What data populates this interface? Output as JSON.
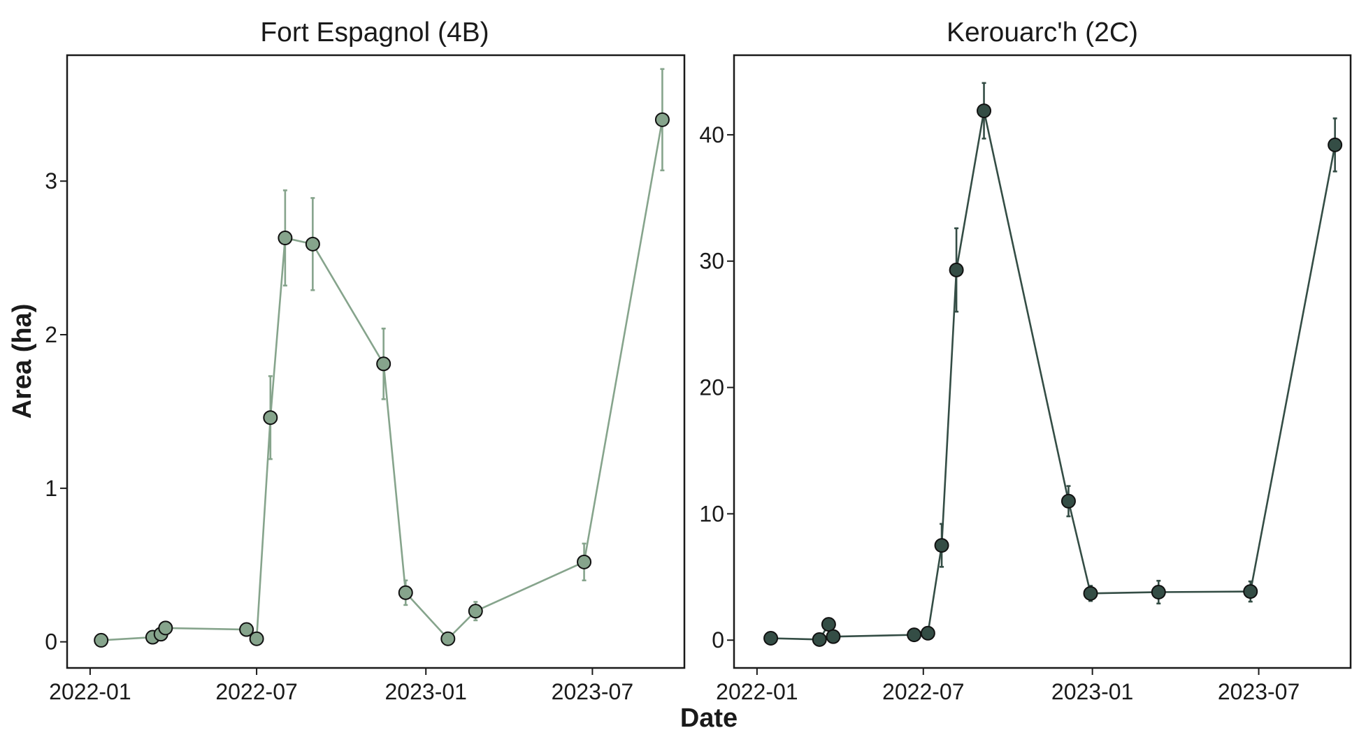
{
  "figure": {
    "ylabel": "Area (ha)",
    "xlabel": "Date"
  },
  "chart_data": [
    {
      "type": "line",
      "title": "Fort Espagnol (4B)",
      "xlabel": "Date",
      "ylabel": "Area (ha)",
      "x_ticks": [
        "2022-01",
        "2022-07",
        "2023-01",
        "2023-07"
      ],
      "y_ticks": [
        "0",
        "1",
        "2",
        "3"
      ],
      "xlim": [
        "2021-12-07",
        "2023-10-09"
      ],
      "ylim": [
        -0.17,
        3.82
      ],
      "grid": false,
      "color": "#86a48c",
      "series": [
        {
          "points": [
            {
              "x": "2022-01-13",
              "y": 0.01,
              "err": null
            },
            {
              "x": "2022-03-10",
              "y": 0.03,
              "err": null
            },
            {
              "x": "2022-03-19",
              "y": 0.05,
              "err": null
            },
            {
              "x": "2022-03-24",
              "y": 0.09,
              "err": null
            },
            {
              "x": "2022-06-20",
              "y": 0.08,
              "err": null
            },
            {
              "x": "2022-07-01",
              "y": 0.02,
              "err": null
            },
            {
              "x": "2022-07-16",
              "y": 1.46,
              "err": 0.27
            },
            {
              "x": "2022-08-01",
              "y": 2.63,
              "err": 0.31
            },
            {
              "x": "2022-08-31",
              "y": 2.59,
              "err": 0.3
            },
            {
              "x": "2022-11-16",
              "y": 1.81,
              "err": 0.23
            },
            {
              "x": "2022-12-10",
              "y": 0.32,
              "err": 0.08
            },
            {
              "x": "2023-01-25",
              "y": 0.02,
              "err": null
            },
            {
              "x": "2023-02-24",
              "y": 0.2,
              "err": 0.06
            },
            {
              "x": "2023-06-22",
              "y": 0.52,
              "err": 0.12
            },
            {
              "x": "2023-09-15",
              "y": 3.4,
              "err": 0.33
            }
          ]
        }
      ]
    },
    {
      "type": "line",
      "title": "Kerouarc'h (2C)",
      "xlabel": "Date",
      "ylabel": "Area (ha)",
      "x_ticks": [
        "2022-01",
        "2022-07",
        "2023-01",
        "2023-07"
      ],
      "y_ticks": [
        "0",
        "10",
        "20",
        "30",
        "40"
      ],
      "xlim": [
        "2021-12-07",
        "2023-10-09"
      ],
      "ylim": [
        -2.2,
        46.3
      ],
      "grid": false,
      "color": "#344d45",
      "series": [
        {
          "points": [
            {
              "x": "2022-01-16",
              "y": 0.15,
              "err": null
            },
            {
              "x": "2022-03-10",
              "y": 0.05,
              "err": null
            },
            {
              "x": "2022-03-20",
              "y": 1.25,
              "err": null
            },
            {
              "x": "2022-03-25",
              "y": 0.28,
              "err": null
            },
            {
              "x": "2022-06-21",
              "y": 0.42,
              "err": null
            },
            {
              "x": "2022-07-06",
              "y": 0.55,
              "err": null
            },
            {
              "x": "2022-07-21",
              "y": 7.5,
              "err": 1.7
            },
            {
              "x": "2022-08-06",
              "y": 29.3,
              "err": 3.3
            },
            {
              "x": "2022-09-05",
              "y": 41.9,
              "err": 2.2
            },
            {
              "x": "2022-12-06",
              "y": 11.0,
              "err": 1.2
            },
            {
              "x": "2022-12-30",
              "y": 3.7,
              "err": 0.6
            },
            {
              "x": "2023-03-14",
              "y": 3.8,
              "err": 0.9
            },
            {
              "x": "2023-06-22",
              "y": 3.85,
              "err": 0.8
            },
            {
              "x": "2023-09-22",
              "y": 39.2,
              "err": 2.1
            }
          ]
        }
      ]
    }
  ]
}
